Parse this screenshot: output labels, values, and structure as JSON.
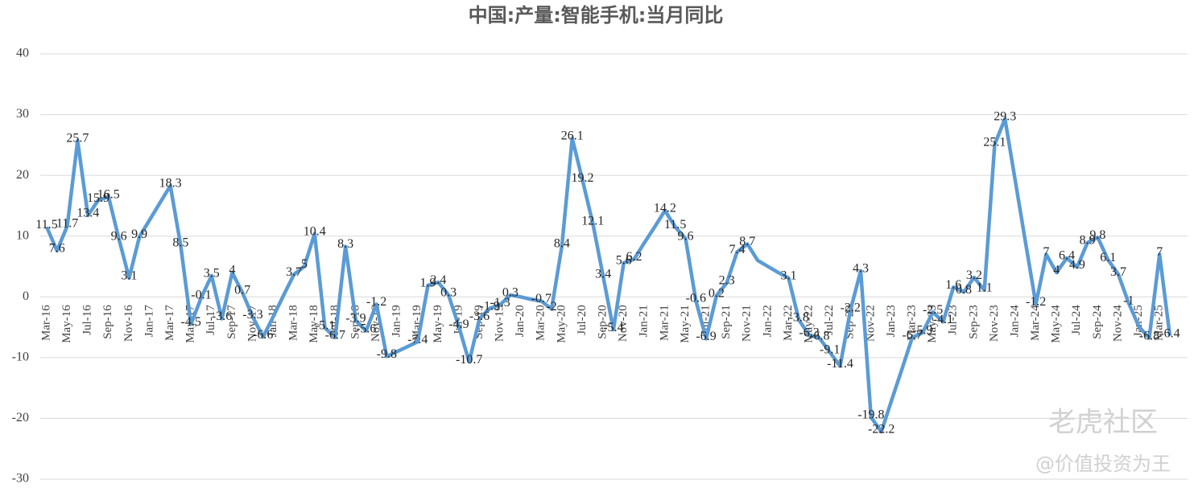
{
  "chart_data": {
    "type": "line",
    "title": "中国:产量:智能手机:当月同比",
    "annotations": [
      "老虎社区",
      "@价值投资为王"
    ],
    "categories": [
      "Mar-16",
      null,
      "May-16",
      null,
      "Jul-16",
      null,
      "Sep-16",
      null,
      "Nov-16",
      null,
      "Jan-17",
      null,
      "Mar-17",
      null,
      "May-17",
      null,
      "Jul-17",
      null,
      "Sep-17",
      null,
      "Nov-17",
      null,
      "Jan-18",
      null,
      "Mar-18",
      null,
      "May-18",
      null,
      "Jul-18",
      null,
      "Sep-18",
      null,
      "Nov-18",
      null,
      "Jan-19",
      null,
      "Mar-19",
      null,
      "May-19",
      null,
      "Jul-19",
      null,
      "Sep-19",
      null,
      "Nov-19",
      null,
      "Jan-20",
      null,
      "Mar-20",
      null,
      "May-20",
      null,
      "Jul-20",
      null,
      "Sep-20",
      null,
      "Nov-20",
      null,
      "Jan-21",
      null,
      "Mar-21",
      null,
      "May-21",
      null,
      "Jul-21",
      null,
      "Sep-21",
      null,
      "Nov-21",
      null,
      "Jan-22",
      null,
      "Mar-22",
      null,
      "May-22",
      null,
      "Jul-22",
      null,
      "Sep-22",
      null,
      "Nov-22",
      null,
      "Jan-23",
      null,
      "Mar-23",
      null,
      "May-23",
      null,
      "Jul-23",
      null,
      "Sep-23",
      null,
      "Nov-23",
      null,
      "Jan-24",
      null,
      "Mar-24",
      null,
      "May-24",
      null,
      "Jul-24",
      null,
      "Sep-24",
      null,
      "Nov-24",
      null,
      "Jan-25",
      null,
      "Mar-25",
      null
    ],
    "series": [
      {
        "name": "当月同比",
        "color": "#5b9bd5",
        "values": [
          11.5,
          7.6,
          11.7,
          25.7,
          13.4,
          15.9,
          16.5,
          9.6,
          3.1,
          9.9,
          12.7,
          15.5,
          18.3,
          8.5,
          -4.5,
          -0.1,
          3.5,
          -3.6,
          4,
          0.7,
          -3.3,
          -6.6,
          -3.2,
          0.3,
          3.7,
          5,
          10.4,
          -5.1,
          -6.7,
          8.3,
          -3.9,
          -5.6,
          -1.2,
          -9.8,
          -9.0,
          -8.2,
          -7.4,
          1.9,
          2.4,
          0.3,
          -4.9,
          -10.7,
          -3.6,
          -1.9,
          -1.3,
          0.3,
          0.0,
          -0.4,
          -0.7,
          -2,
          8.4,
          26.1,
          19.2,
          12.1,
          3.4,
          -5.4,
          5.6,
          6.2,
          8.9,
          11.5,
          14.2,
          11.5,
          9.6,
          -0.6,
          -6.9,
          0.2,
          2.3,
          7.4,
          8.7,
          6.0,
          5.0,
          4.0,
          3.1,
          -3.8,
          -6.3,
          -6.8,
          -9.1,
          -11.4,
          -2.2,
          4.3,
          -19.8,
          -22.2,
          -17.0,
          -11.9,
          -6.7,
          -5.9,
          -2.5,
          -4.1,
          1.6,
          0.8,
          3.2,
          1.1,
          25.1,
          29.3,
          19.1,
          8.9,
          -1.2,
          7,
          4,
          6.4,
          4.9,
          8.9,
          9.8,
          6.1,
          3.7,
          -1,
          -4.9,
          -6.8,
          7,
          -6.4
        ],
        "value_labels": [
          "11.5",
          "7.6",
          "11.7",
          "25.7",
          "13.4",
          "15.9",
          "16.5",
          "9.6",
          "3.1",
          "9.9",
          null,
          null,
          "18.3",
          "8.5",
          "-4.5",
          "-0.1",
          "3.5",
          "-3.6",
          "4",
          "0.7",
          "-3.3",
          "-6.6",
          null,
          null,
          "3.7",
          "5",
          "10.4",
          "-5.1",
          "-6.7",
          "8.3",
          "-3.9",
          "-5.6",
          "-1.2",
          "-9.8",
          null,
          null,
          "-7.4",
          "1.9",
          "2.4",
          "0.3",
          "-4.9",
          "-10.7",
          "-3.6",
          "-1.9",
          "-1.3",
          "0.3",
          null,
          null,
          "-0.7",
          "-2",
          "8.4",
          "26.1",
          "19.2",
          "12.1",
          "3.4",
          "-5.4",
          "5.6",
          "6.2",
          null,
          null,
          "14.2",
          "11.5",
          "9.6",
          "-0.6",
          "-6.9",
          "0.2",
          "2.3",
          "7.4",
          "8.7",
          null,
          null,
          null,
          "3.1",
          "-3.8",
          "-6.3",
          "-6.8",
          "-9.1",
          "-11.4",
          "-2.2",
          "4.3",
          "-19.8",
          "-22.2",
          null,
          null,
          "-6.7",
          "-5.9",
          "-2.5",
          "-4.1",
          "1.6",
          "0.8",
          "3.2",
          "1.1",
          "25.1",
          "29.3",
          null,
          null,
          "-1.2",
          "7",
          "4",
          "6.4",
          "4.9",
          "8.9",
          "9.8",
          "6.1",
          "3.7",
          "-1",
          null,
          "-6.8",
          "7",
          "-6.4"
        ]
      }
    ],
    "ylim": [
      -30,
      40
    ],
    "yticks": [
      -30,
      -20,
      -10,
      0,
      10,
      20,
      30,
      40
    ],
    "grid": true
  }
}
